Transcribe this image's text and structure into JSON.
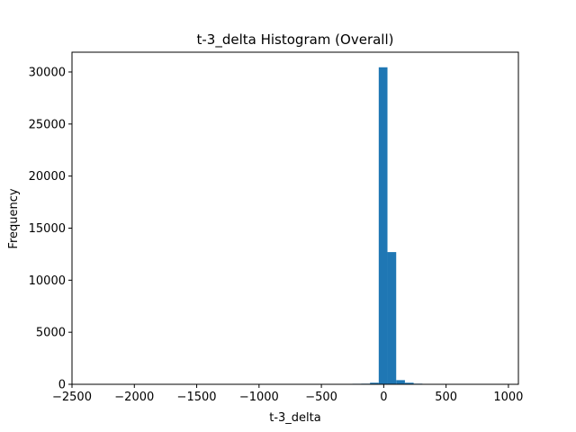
{
  "chart_data": {
    "type": "bar",
    "title": "t-3_delta Histogram (Overall)",
    "xlabel": "t-3_delta",
    "ylabel": "Frequency",
    "xlim": [
      -2500,
      1080
    ],
    "ylim": [
      0,
      31900
    ],
    "x_ticks": [
      -2500,
      -2000,
      -1500,
      -1000,
      -500,
      0,
      500,
      1000
    ],
    "y_ticks": [
      0,
      5000,
      10000,
      15000,
      20000,
      25000,
      30000
    ],
    "grid": false,
    "legend": "none",
    "bar_color": "#1f77b4",
    "bins": [
      {
        "x0": -320,
        "x1": -250,
        "count": 40
      },
      {
        "x0": -250,
        "x1": -180,
        "count": 50
      },
      {
        "x0": -180,
        "x1": -110,
        "count": 60
      },
      {
        "x0": -110,
        "x1": -40,
        "count": 150
      },
      {
        "x0": -40,
        "x1": 30,
        "count": 30450
      },
      {
        "x0": 30,
        "x1": 100,
        "count": 12700
      },
      {
        "x0": 100,
        "x1": 170,
        "count": 400
      },
      {
        "x0": 170,
        "x1": 240,
        "count": 150
      },
      {
        "x0": 240,
        "x1": 310,
        "count": 60
      },
      {
        "x0": 310,
        "x1": 380,
        "count": 20
      }
    ]
  }
}
